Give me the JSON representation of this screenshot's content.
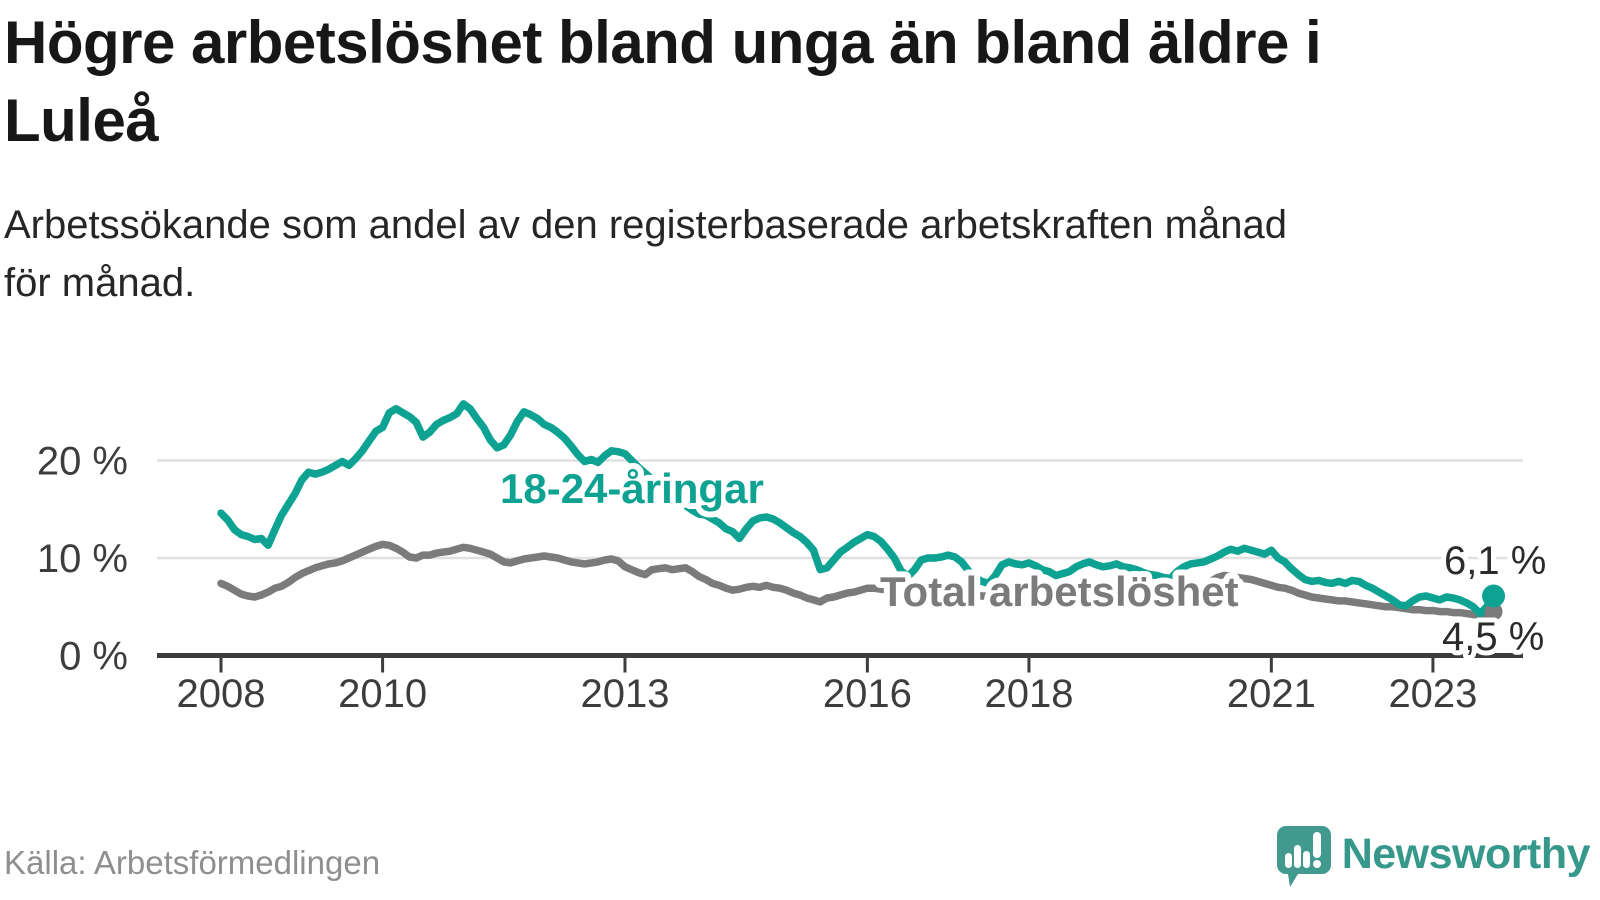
{
  "title": "Högre arbetslöshet bland unga än bland äldre i\nLuleå",
  "subtitle": "Arbetssökande som andel av den registerbaserade arbetskraften månad\nför månad.",
  "source": "Källa: Arbetsförmedlingen",
  "branding": {
    "name": "Newsworthy"
  },
  "colors": {
    "youth_line": "#0ea293",
    "total_line": "#7b7b7b",
    "axis": "#3d3d3d",
    "grid": "#e0e0e0",
    "logo": "#42998e",
    "value_label": "#2b2b2b"
  },
  "chart_data": {
    "type": "line",
    "x_start_year": 2008,
    "x_end": "2023-10",
    "x_ticks": [
      2008,
      2010,
      2013,
      2016,
      2018,
      2021,
      2023
    ],
    "y_ticks": [
      {
        "value": 0,
        "label": "0 %"
      },
      {
        "value": 10,
        "label": "10 %"
      },
      {
        "value": 20,
        "label": "20 %"
      }
    ],
    "ylim": [
      0,
      27
    ],
    "grid": "horizontal-only",
    "series": [
      {
        "name": "18-24-åringar",
        "color": "#0ea293",
        "end_label": "6,1 %",
        "end_value": 6.1,
        "values": [
          14.6,
          13.9,
          12.9,
          12.4,
          12.2,
          11.9,
          12.0,
          11.3,
          12.9,
          14.4,
          15.5,
          16.6,
          18.0,
          18.8,
          18.6,
          18.8,
          19.1,
          19.5,
          19.9,
          19.5,
          20.2,
          21.0,
          22.0,
          23.0,
          23.4,
          24.9,
          25.3,
          24.9,
          24.5,
          23.9,
          22.4,
          22.9,
          23.7,
          24.1,
          24.4,
          24.8,
          25.8,
          25.3,
          24.3,
          23.4,
          22.1,
          21.3,
          21.6,
          22.6,
          24.0,
          25.0,
          24.7,
          24.3,
          23.7,
          23.4,
          22.9,
          22.3,
          21.5,
          20.6,
          19.9,
          20.1,
          19.8,
          20.5,
          21.0,
          20.9,
          20.7,
          20.0,
          19.3,
          18.7,
          18.1,
          17.6,
          17.0,
          16.4,
          15.9,
          15.4,
          14.9,
          14.5,
          14.4,
          14.0,
          13.6,
          13.0,
          12.7,
          12.0,
          13.0,
          13.8,
          14.1,
          14.2,
          14.0,
          13.6,
          13.1,
          12.6,
          12.2,
          11.6,
          10.8,
          8.8,
          9.0,
          9.8,
          10.6,
          11.1,
          11.6,
          12.0,
          12.4,
          12.2,
          11.7,
          10.9,
          10.0,
          8.7,
          8.1,
          8.8,
          9.8,
          10.0,
          10.0,
          10.1,
          10.3,
          10.1,
          9.6,
          8.7,
          8.0,
          7.6,
          7.4,
          8.2,
          9.3,
          9.6,
          9.4,
          9.3,
          9.5,
          9.2,
          8.8,
          8.6,
          8.2,
          8.4,
          8.6,
          9.1,
          9.4,
          9.6,
          9.3,
          9.1,
          9.2,
          9.4,
          9.1,
          9.0,
          8.8,
          8.5,
          8.3,
          8.2,
          8.0,
          7.9,
          8.6,
          9.1,
          9.4,
          9.5,
          9.6,
          9.9,
          10.2,
          10.6,
          10.9,
          10.7,
          11.0,
          10.8,
          10.6,
          10.4,
          10.8,
          10.0,
          9.6,
          8.9,
          8.3,
          7.8,
          7.6,
          7.7,
          7.5,
          7.4,
          7.6,
          7.4,
          7.7,
          7.6,
          7.2,
          6.9,
          6.5,
          6.1,
          5.7,
          5.2,
          5.1,
          5.6,
          6.0,
          6.1,
          5.9,
          5.7,
          6.0,
          5.9,
          5.7,
          5.4,
          5.0,
          4.3,
          5.0,
          6.1
        ]
      },
      {
        "name": "Total arbetslöshet",
        "color": "#7b7b7b",
        "end_label": "4,5 %",
        "end_value": 4.5,
        "values": [
          7.4,
          7.1,
          6.7,
          6.3,
          6.1,
          6.0,
          6.2,
          6.5,
          6.9,
          7.1,
          7.5,
          8.0,
          8.4,
          8.7,
          9.0,
          9.2,
          9.4,
          9.5,
          9.7,
          10.0,
          10.3,
          10.6,
          10.9,
          11.2,
          11.4,
          11.3,
          11.0,
          10.6,
          10.1,
          10.0,
          10.3,
          10.3,
          10.5,
          10.6,
          10.7,
          10.9,
          11.1,
          11.0,
          10.8,
          10.6,
          10.4,
          10.0,
          9.6,
          9.5,
          9.7,
          9.9,
          10.0,
          10.1,
          10.2,
          10.1,
          10.0,
          9.8,
          9.6,
          9.5,
          9.4,
          9.5,
          9.6,
          9.8,
          9.9,
          9.7,
          9.1,
          8.8,
          8.5,
          8.3,
          8.8,
          8.9,
          9.0,
          8.8,
          8.9,
          9.0,
          8.6,
          8.1,
          7.8,
          7.4,
          7.2,
          6.9,
          6.7,
          6.8,
          7.0,
          7.1,
          7.0,
          7.2,
          7.0,
          6.9,
          6.7,
          6.4,
          6.2,
          5.9,
          5.7,
          5.5,
          5.9,
          6.0,
          6.2,
          6.4,
          6.5,
          6.7,
          6.9,
          6.9,
          6.8,
          6.7,
          6.6,
          6.5,
          6.5,
          6.6,
          6.7,
          6.7,
          6.6,
          6.6,
          6.6,
          6.5,
          6.4,
          6.3,
          6.2,
          6.1,
          6.1,
          6.2,
          6.3,
          6.3,
          6.2,
          6.2,
          6.2,
          6.1,
          6.0,
          5.9,
          5.9,
          5.8,
          5.9,
          6.0,
          6.1,
          6.1,
          6.0,
          6.0,
          6.1,
          6.1,
          6.0,
          6.0,
          5.9,
          5.9,
          6.0,
          6.1,
          6.2,
          6.3,
          6.4,
          6.5,
          6.6,
          6.7,
          7.0,
          7.6,
          8.0,
          8.2,
          8.1,
          8.0,
          7.9,
          7.8,
          7.6,
          7.4,
          7.2,
          7.0,
          6.9,
          6.7,
          6.4,
          6.2,
          6.0,
          5.9,
          5.8,
          5.7,
          5.6,
          5.6,
          5.5,
          5.4,
          5.3,
          5.2,
          5.1,
          5.0,
          5.0,
          4.9,
          4.8,
          4.7,
          4.7,
          4.6,
          4.6,
          4.5,
          4.5,
          4.4,
          4.4,
          4.3,
          4.2,
          4.1,
          4.0,
          4.5
        ]
      }
    ]
  }
}
